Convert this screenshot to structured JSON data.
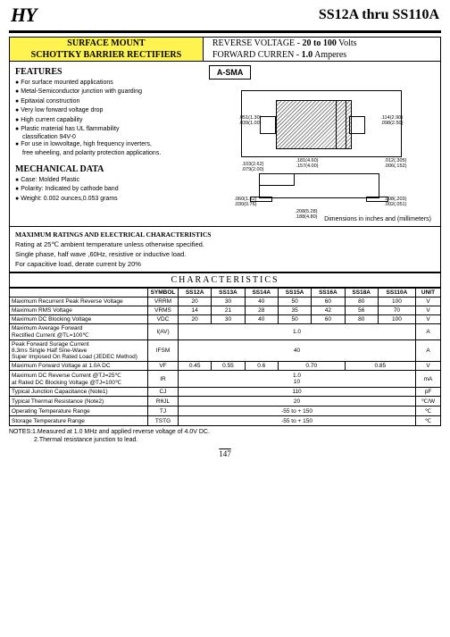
{
  "logo": "HY",
  "title": "SS12A thru SS110A",
  "header": {
    "left_line1": "SURFACE MOUNT",
    "left_line2": "SCHOTTKY BARRIER  RECTIFIERS",
    "rv_label": "REVERSE VOLTAGE  -",
    "rv_value": "20 to 100",
    "rv_unit": "Volts",
    "fc_label": "FORWARD CURREN  -",
    "fc_value": "1.0",
    "fc_unit": "Amperes"
  },
  "package_label": "A-SMA",
  "features": {
    "title": "FEATURES",
    "items": [
      "For surface mounted applications",
      "Metal-Semiconductor junction with guarding",
      "Epitaxial construction",
      "Very low forward voltage drop",
      "High current capability",
      "Plastic material has UL flammability",
      "For use in lowvoltage, high frequency inverters,"
    ],
    "indent1": "classification 94V-0",
    "indent2": "free wheeling, and polarity protection applications."
  },
  "mech": {
    "title": "MECHANICAL DATA",
    "items": [
      "Case:   Molded Plastic",
      "Polarity: Indicated by cathode band",
      "Weight: 0.002 ounces,0.053 grams"
    ]
  },
  "diagram1": {
    "d1": ".051(1.30)",
    "d2": ".039(1.00)",
    "d3": ".114(2.90)",
    "d4": ".098(2.50)",
    "d5": ".181(4.60)",
    "d6": ".157(4.00)"
  },
  "diagram2": {
    "d1": ".103(2.62)",
    "d2": ".079(2.00)",
    "d3": ".060(1.52)",
    "d4": ".030(0.76)",
    "d5": ".208(5.28)",
    "d6": ".188(4.80)",
    "d7": ".012(.305)",
    "d8": ".006(.152)",
    "d9": ".008(.203)",
    "d10": ".002(.051)"
  },
  "dim_note": "Dimensions in inches and (millimeters)",
  "ratings": {
    "title": "MAXIMUM RATINGS AND ELECTRICAL CHARACTERISTICS",
    "line1": "Rating at 25℃ ambient temperature unless otherwise specified.",
    "line2": "Single phase, half wave ,60Hz, resistive or inductive load.",
    "line3": "For capacitive load, derate current by 20%"
  },
  "table": {
    "title": "CHARACTERISTICS",
    "headers": [
      "SYMBOL",
      "SS12A",
      "SS13A",
      "SS14A",
      "SS15A",
      "SS16A",
      "SS18A",
      "SS110A",
      "UNIT"
    ],
    "rows": [
      {
        "label": "Maximum Recurrent Peak Reverse Voltage",
        "sym": "VRRM",
        "vals": [
          "20",
          "30",
          "40",
          "50",
          "60",
          "80",
          "100"
        ],
        "unit": "V"
      },
      {
        "label": "Maximum RMS Voltage",
        "sym": "VRMS",
        "vals": [
          "14",
          "21",
          "28",
          "35",
          "42",
          "56",
          "70"
        ],
        "unit": "V"
      },
      {
        "label": "Maximum DC Blocking Voltage",
        "sym": "VDC",
        "vals": [
          "20",
          "30",
          "40",
          "50",
          "60",
          "80",
          "100"
        ],
        "unit": "V"
      },
      {
        "label": "Maximum Average Forward\nRectified Current                    @TL=100℃",
        "sym": "I(AV)",
        "span": "1.0",
        "unit": "A"
      },
      {
        "label": "Peak Forward Surage Current\n8.3ms Single Half Sine-Wave\nSuper Imposed On Rated Load (JEDEC Method)",
        "sym": "IFSM",
        "span": "40",
        "unit": "A"
      },
      {
        "label": "Maximum Forward  Voltage  at 1.0A DC",
        "sym": "VF",
        "vals_merge": [
          {
            "t": "0.45",
            "c": 1
          },
          {
            "t": "0.55",
            "c": 1
          },
          {
            "t": "0.6",
            "c": 1
          },
          {
            "t": "0.70",
            "c": 2
          },
          {
            "t": "0.85",
            "c": 2
          }
        ],
        "unit": "V"
      },
      {
        "label": "Maximum DC Reverse Current          @TJ=25℃\nat Rated DC Blocking Voltage     @TJ=100℃",
        "sym": "IR",
        "stack": [
          "1.0",
          "10"
        ],
        "unit": "mA"
      },
      {
        "label": "Typical Junction  Capacitance (Note1)",
        "sym": "CJ",
        "span": "110",
        "unit": "pF"
      },
      {
        "label": "Typical Thermal Resistance (Note2)",
        "sym": "RθJL",
        "span": "20",
        "unit": "℃/W"
      },
      {
        "label": "Operating Temperature Range",
        "sym": "TJ",
        "span": "-55 to + 150",
        "unit": "℃"
      },
      {
        "label": "Storage Temperature Range",
        "sym": "TSTG",
        "span": "-55 to + 150",
        "unit": "℃"
      }
    ]
  },
  "notes": {
    "n1": "NOTES:1.Measured at 1.0 MHz and applied reverse voltage of 4.0V DC.",
    "n2": "2.Thermal resistance junction to lead."
  },
  "page": "147"
}
